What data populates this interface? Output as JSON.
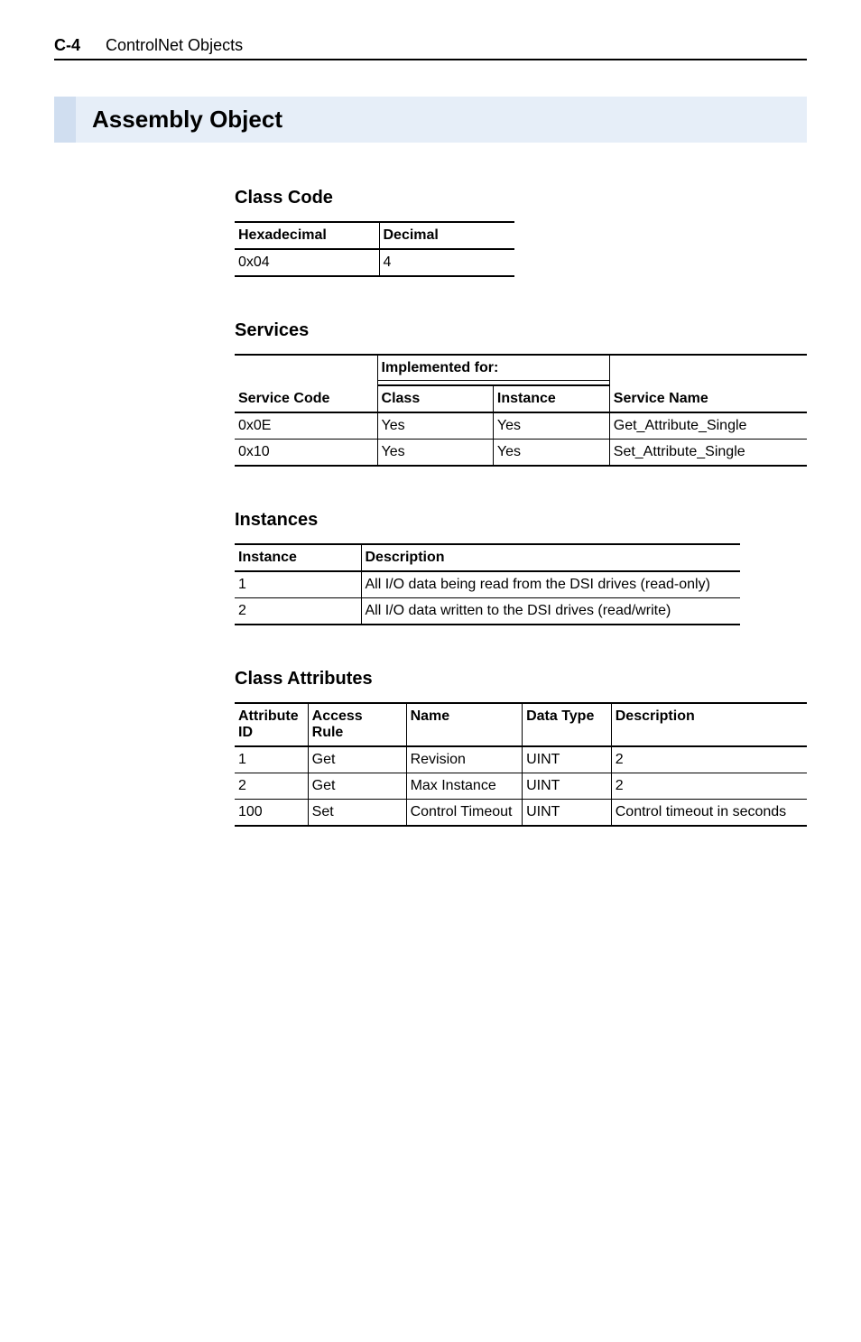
{
  "header": {
    "page_number": "C-4",
    "chapter": "ControlNet Objects"
  },
  "section_title": "Assembly Object",
  "class_code": {
    "heading": "Class Code",
    "columns": [
      "Hexadecimal",
      "Decimal"
    ],
    "rows": [
      [
        "0x04",
        "4"
      ]
    ],
    "col_widths": [
      "160px",
      "150px"
    ]
  },
  "services": {
    "heading": "Services",
    "group_header": "Implemented for:",
    "columns": [
      "Service Code",
      "Class",
      "Instance",
      "Service Name"
    ],
    "rows": [
      [
        "0x0E",
        "Yes",
        "Yes",
        "Get_Attribute_Single"
      ],
      [
        "0x10",
        "Yes",
        "Yes",
        "Set_Attribute_Single"
      ]
    ],
    "col_widths": [
      "160px",
      "130px",
      "130px",
      "220px"
    ]
  },
  "instances": {
    "heading": "Instances",
    "columns": [
      "Instance",
      "Description"
    ],
    "rows": [
      [
        "1",
        "All I/O data being read from the DSI drives (read-only)"
      ],
      [
        "2",
        "All I/O data written to the DSI drives (read/write)"
      ]
    ],
    "col_widths": [
      "140px",
      "420px"
    ]
  },
  "class_attributes": {
    "heading": "Class Attributes",
    "columns": [
      "Attribute ID",
      "Access Rule",
      "Name",
      "Data Type",
      "Description"
    ],
    "rows": [
      [
        "1",
        "Get",
        "Revision",
        "UINT",
        "2"
      ],
      [
        "2",
        "Get",
        "Max Instance",
        "UINT",
        "2"
      ],
      [
        "100",
        "Set",
        "Control Timeout",
        "UINT",
        "Control timeout in seconds"
      ]
    ],
    "col_widths": [
      "80px",
      "110px",
      "130px",
      "100px",
      "220px"
    ]
  }
}
